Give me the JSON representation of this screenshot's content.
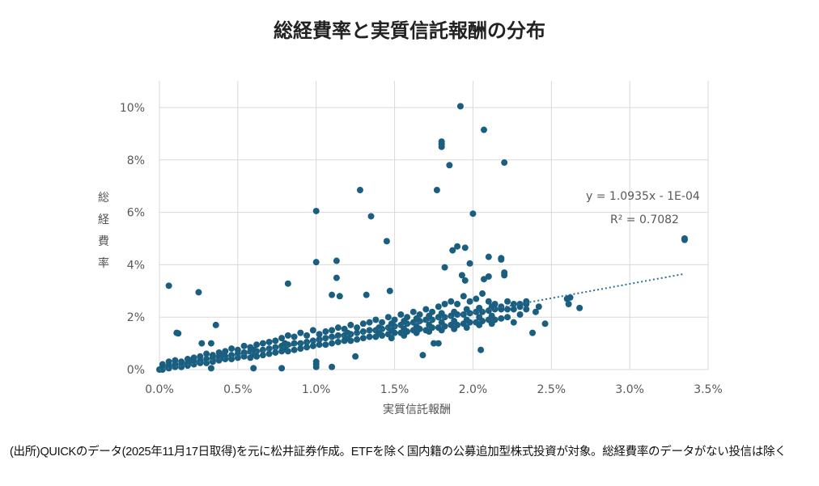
{
  "chart_data": {
    "type": "scatter",
    "title": "総経費率と実質信託報酬の分布",
    "xlabel": "実質信託報酬",
    "ylabel": "総経費率",
    "xlim": [
      0,
      3.5
    ],
    "ylim": [
      0,
      10.5
    ],
    "x_ticks": [
      "0.0%",
      "0.5%",
      "1.0%",
      "1.5%",
      "2.0%",
      "2.5%",
      "3.0%",
      "3.5%"
    ],
    "x_tick_values": [
      0,
      0.5,
      1.0,
      1.5,
      2.0,
      2.5,
      3.0,
      3.5
    ],
    "y_ticks": [
      "0%",
      "2%",
      "4%",
      "6%",
      "8%",
      "10%"
    ],
    "y_tick_values": [
      0,
      2,
      4,
      6,
      8,
      10
    ],
    "grid": true,
    "unit": "percent",
    "marker_color": "#1a5e80",
    "trendline": {
      "type": "linear",
      "slope": 1.0935,
      "intercept": -0.01,
      "x_range": [
        0,
        3.35
      ],
      "equation_label": "y = 1.0935x - 1E-04",
      "r2_label": "R² = 0.7082"
    },
    "outliers": [
      [
        0.06,
        3.2
      ],
      [
        0.25,
        2.95
      ],
      [
        0.11,
        1.4
      ],
      [
        0.12,
        1.38
      ],
      [
        0.36,
        1.7
      ],
      [
        0.82,
        3.28
      ],
      [
        1.0,
        6.05
      ],
      [
        1.0,
        4.1
      ],
      [
        1.28,
        6.85
      ],
      [
        1.35,
        5.85
      ],
      [
        1.45,
        4.9
      ],
      [
        1.13,
        4.15
      ],
      [
        1.13,
        3.5
      ],
      [
        1.1,
        2.85
      ],
      [
        1.15,
        2.8
      ],
      [
        1.32,
        2.85
      ],
      [
        1.47,
        3.0
      ],
      [
        1.8,
        8.7
      ],
      [
        1.8,
        8.6
      ],
      [
        1.8,
        8.5
      ],
      [
        1.92,
        10.05
      ],
      [
        2.07,
        9.15
      ],
      [
        1.85,
        7.8
      ],
      [
        2.2,
        7.9
      ],
      [
        1.77,
        6.85
      ],
      [
        2.0,
        5.95
      ],
      [
        3.35,
        5.0
      ],
      [
        3.35,
        4.95
      ],
      [
        1.9,
        4.7
      ],
      [
        1.95,
        4.65
      ],
      [
        1.87,
        4.55
      ],
      [
        2.1,
        4.3
      ],
      [
        2.18,
        4.25
      ],
      [
        2.18,
        4.2
      ],
      [
        1.98,
        4.05
      ],
      [
        1.82,
        3.9
      ],
      [
        2.2,
        3.7
      ],
      [
        2.2,
        3.6
      ],
      [
        2.1,
        3.55
      ],
      [
        1.93,
        3.6
      ],
      [
        1.95,
        3.4
      ],
      [
        2.07,
        3.45
      ],
      [
        2.62,
        2.75
      ],
      [
        2.6,
        2.7
      ],
      [
        2.61,
        2.5
      ],
      [
        2.68,
        2.35
      ],
      [
        2.42,
        2.4
      ],
      [
        2.4,
        2.2
      ],
      [
        2.46,
        1.75
      ],
      [
        2.38,
        1.4
      ],
      [
        2.05,
        0.75
      ],
      [
        1.68,
        0.55
      ],
      [
        1.25,
        0.5
      ],
      [
        1.1,
        0.1
      ],
      [
        0.78,
        0.05
      ],
      [
        0.6,
        0.05
      ],
      [
        0.33,
        0.05
      ],
      [
        1.0,
        0.1
      ],
      [
        1.0,
        0.2
      ],
      [
        1.0,
        0.3
      ],
      [
        0.0,
        0.0
      ],
      [
        0.27,
        1.0
      ],
      [
        0.33,
        1.0
      ],
      [
        1.78,
        1.0
      ],
      [
        1.75,
        1.0
      ]
    ],
    "cloud": [
      {
        "x": 0.02,
        "y": [
          0.0,
          0.1,
          0.2
        ]
      },
      {
        "x": 0.06,
        "y": [
          0.05,
          0.15,
          0.3
        ]
      },
      {
        "x": 0.1,
        "y": [
          0.1,
          0.2,
          0.35
        ]
      },
      {
        "x": 0.14,
        "y": [
          0.1,
          0.2,
          0.3
        ]
      },
      {
        "x": 0.18,
        "y": [
          0.15,
          0.25,
          0.4
        ]
      },
      {
        "x": 0.22,
        "y": [
          0.2,
          0.3,
          0.45
        ]
      },
      {
        "x": 0.26,
        "y": [
          0.25,
          0.35,
          0.5
        ]
      },
      {
        "x": 0.3,
        "y": [
          0.25,
          0.4,
          0.6
        ]
      },
      {
        "x": 0.34,
        "y": [
          0.3,
          0.45,
          0.55
        ]
      },
      {
        "x": 0.38,
        "y": [
          0.35,
          0.5,
          0.65
        ]
      },
      {
        "x": 0.42,
        "y": [
          0.4,
          0.5,
          0.7
        ]
      },
      {
        "x": 0.46,
        "y": [
          0.4,
          0.55,
          0.8
        ]
      },
      {
        "x": 0.5,
        "y": [
          0.45,
          0.6,
          0.75
        ]
      },
      {
        "x": 0.54,
        "y": [
          0.5,
          0.65,
          0.9
        ]
      },
      {
        "x": 0.58,
        "y": [
          0.45,
          0.7,
          0.85
        ]
      },
      {
        "x": 0.62,
        "y": [
          0.5,
          0.7,
          0.95
        ]
      },
      {
        "x": 0.66,
        "y": [
          0.55,
          0.75,
          1.0
        ]
      },
      {
        "x": 0.7,
        "y": [
          0.6,
          0.8,
          1.05
        ]
      },
      {
        "x": 0.74,
        "y": [
          0.65,
          0.85,
          1.1
        ]
      },
      {
        "x": 0.78,
        "y": [
          0.7,
          0.9,
          1.2
        ]
      },
      {
        "x": 0.82,
        "y": [
          0.7,
          0.95,
          1.3
        ]
      },
      {
        "x": 0.86,
        "y": [
          0.75,
          1.0,
          1.25
        ]
      },
      {
        "x": 0.9,
        "y": [
          0.8,
          1.0,
          1.4
        ]
      },
      {
        "x": 0.94,
        "y": [
          0.85,
          1.05,
          1.3
        ]
      },
      {
        "x": 0.98,
        "y": [
          0.9,
          1.1,
          1.5
        ]
      },
      {
        "x": 1.02,
        "y": [
          0.95,
          1.15,
          1.35
        ]
      },
      {
        "x": 1.06,
        "y": [
          0.95,
          1.2,
          1.45
        ]
      },
      {
        "x": 1.1,
        "y": [
          1.0,
          1.25,
          1.5
        ]
      },
      {
        "x": 1.14,
        "y": [
          1.05,
          1.3,
          1.6
        ]
      },
      {
        "x": 1.18,
        "y": [
          1.1,
          1.3,
          1.55
        ]
      },
      {
        "x": 1.22,
        "y": [
          1.1,
          1.35,
          1.7
        ]
      },
      {
        "x": 1.26,
        "y": [
          1.15,
          1.4,
          1.6
        ]
      },
      {
        "x": 1.3,
        "y": [
          1.2,
          1.45,
          1.75
        ]
      },
      {
        "x": 1.34,
        "y": [
          1.25,
          1.5,
          1.8
        ]
      },
      {
        "x": 1.38,
        "y": [
          1.25,
          1.5,
          1.9
        ]
      },
      {
        "x": 1.42,
        "y": [
          1.3,
          1.55,
          1.8
        ]
      },
      {
        "x": 1.46,
        "y": [
          1.35,
          1.6,
          2.0
        ]
      },
      {
        "x": 1.5,
        "y": [
          1.4,
          1.65,
          1.9
        ]
      },
      {
        "x": 1.54,
        "y": [
          1.4,
          1.7,
          2.1
        ]
      },
      {
        "x": 1.58,
        "y": [
          1.45,
          1.75,
          2.0
        ]
      },
      {
        "x": 1.62,
        "y": [
          1.5,
          1.8,
          2.2
        ]
      },
      {
        "x": 1.66,
        "y": [
          1.55,
          1.85,
          2.1
        ]
      },
      {
        "x": 1.7,
        "y": [
          1.5,
          1.9,
          2.3
        ]
      },
      {
        "x": 1.74,
        "y": [
          1.6,
          1.9,
          2.2
        ]
      },
      {
        "x": 1.78,
        "y": [
          1.6,
          2.0,
          2.4
        ]
      },
      {
        "x": 1.82,
        "y": [
          1.65,
          2.0,
          2.5
        ]
      },
      {
        "x": 1.86,
        "y": [
          1.7,
          2.05,
          2.6
        ]
      },
      {
        "x": 1.9,
        "y": [
          1.7,
          2.1,
          2.5
        ]
      },
      {
        "x": 1.94,
        "y": [
          1.75,
          2.1,
          2.8
        ]
      },
      {
        "x": 1.98,
        "y": [
          1.8,
          2.15,
          2.6
        ]
      },
      {
        "x": 2.02,
        "y": [
          1.8,
          2.2,
          2.7
        ]
      },
      {
        "x": 2.06,
        "y": [
          1.85,
          2.2,
          2.9
        ]
      },
      {
        "x": 2.1,
        "y": [
          1.9,
          2.25,
          2.6
        ]
      },
      {
        "x": 2.14,
        "y": [
          1.9,
          2.3,
          2.5
        ]
      },
      {
        "x": 2.18,
        "y": [
          1.95,
          2.3,
          2.4
        ]
      },
      {
        "x": 2.22,
        "y": [
          2.0,
          2.3,
          2.6
        ]
      },
      {
        "x": 2.26,
        "y": [
          1.8,
          2.3,
          2.5
        ]
      },
      {
        "x": 2.3,
        "y": [
          2.1,
          2.4,
          2.5
        ]
      },
      {
        "x": 2.34,
        "y": [
          2.3,
          2.6,
          2.5
        ]
      },
      {
        "x": 1.48,
        "y": [
          1.5,
          1.75,
          1.2
        ]
      },
      {
        "x": 1.56,
        "y": [
          1.55,
          1.85,
          1.3
        ]
      },
      {
        "x": 1.64,
        "y": [
          1.65,
          1.95,
          1.4
        ]
      },
      {
        "x": 1.72,
        "y": [
          1.7,
          2.05,
          1.45
        ]
      },
      {
        "x": 1.8,
        "y": [
          1.8,
          2.15,
          1.5
        ]
      },
      {
        "x": 1.88,
        "y": [
          1.85,
          2.2,
          1.55
        ]
      },
      {
        "x": 1.96,
        "y": [
          1.9,
          2.3,
          1.6
        ]
      },
      {
        "x": 2.04,
        "y": [
          2.0,
          2.35,
          1.7
        ]
      },
      {
        "x": 2.12,
        "y": [
          2.05,
          2.4,
          1.75
        ]
      },
      {
        "x": 0.2,
        "y": [
          0.3,
          0.35
        ]
      },
      {
        "x": 0.4,
        "y": [
          0.45,
          0.55
        ]
      },
      {
        "x": 0.6,
        "y": [
          0.6,
          0.75
        ]
      },
      {
        "x": 0.8,
        "y": [
          0.85,
          1.0
        ]
      },
      {
        "x": 1.2,
        "y": [
          1.2,
          1.4
        ]
      },
      {
        "x": 1.4,
        "y": [
          1.4,
          1.6
        ]
      }
    ]
  },
  "note": "(出所)QUICKのデータ(2025年11月17日取得)を元に松井証券作成。ETFを除く国内籍の公募追加型株式投資が対象。総経費率のデータがない投信は除く"
}
